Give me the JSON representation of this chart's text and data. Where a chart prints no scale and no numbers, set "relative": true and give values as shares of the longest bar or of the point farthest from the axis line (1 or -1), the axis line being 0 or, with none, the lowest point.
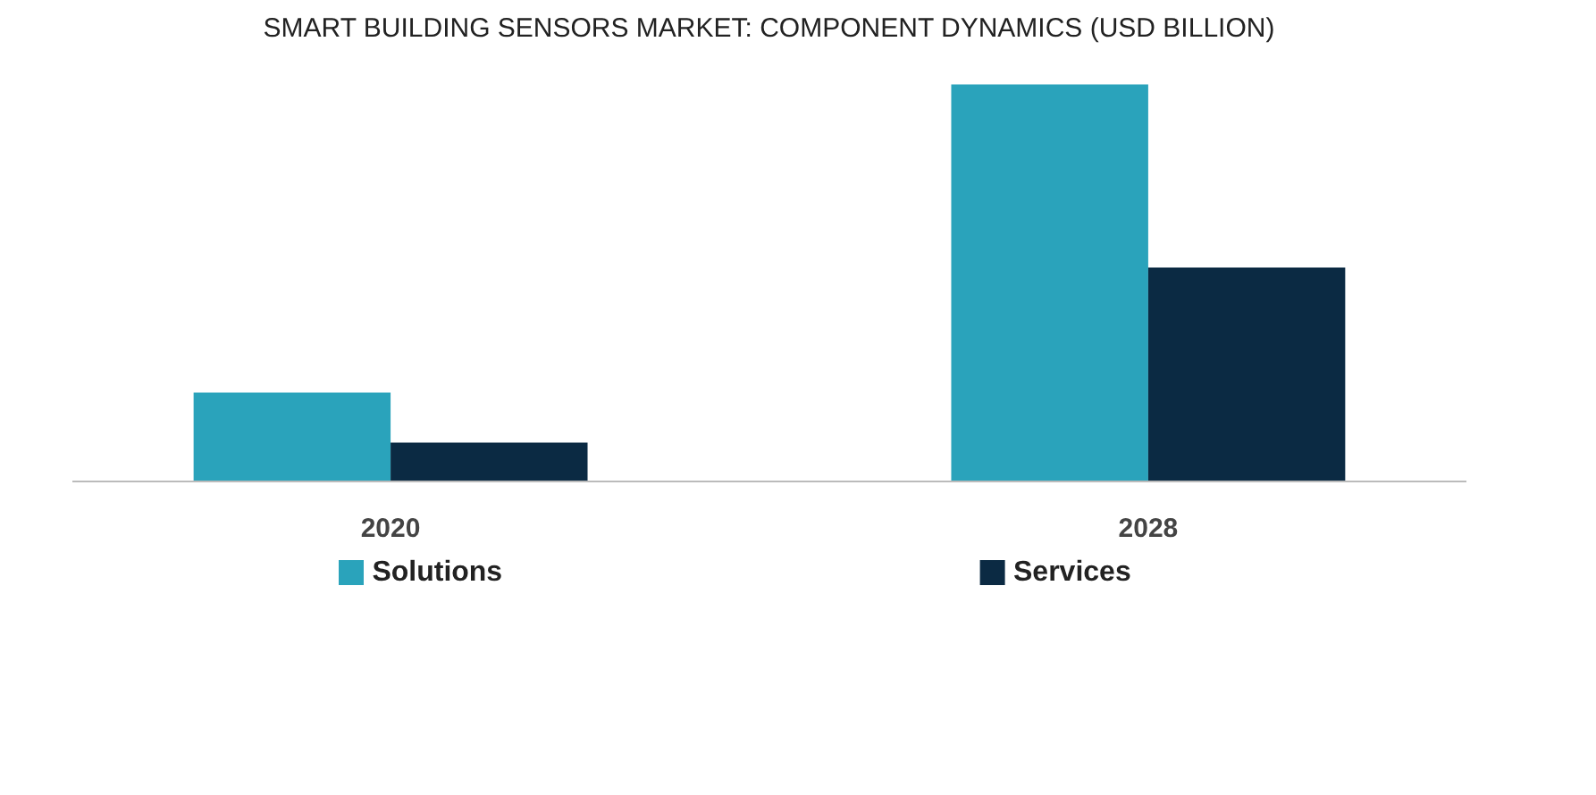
{
  "chart_data": {
    "type": "bar",
    "title": "SMART BUILDING SENSORS MARKET: COMPONENT DYNAMICS (USD BILLION)",
    "categories": [
      "2020",
      "2028"
    ],
    "relative": true,
    "series": [
      {
        "name": "Solutions",
        "color": "#2aa3bb",
        "values": [
          0.224,
          1
        ]
      },
      {
        "name": "Services",
        "color": "#0b2a43",
        "values": [
          0.098,
          0.539
        ]
      }
    ],
    "legend": "bottom"
  }
}
